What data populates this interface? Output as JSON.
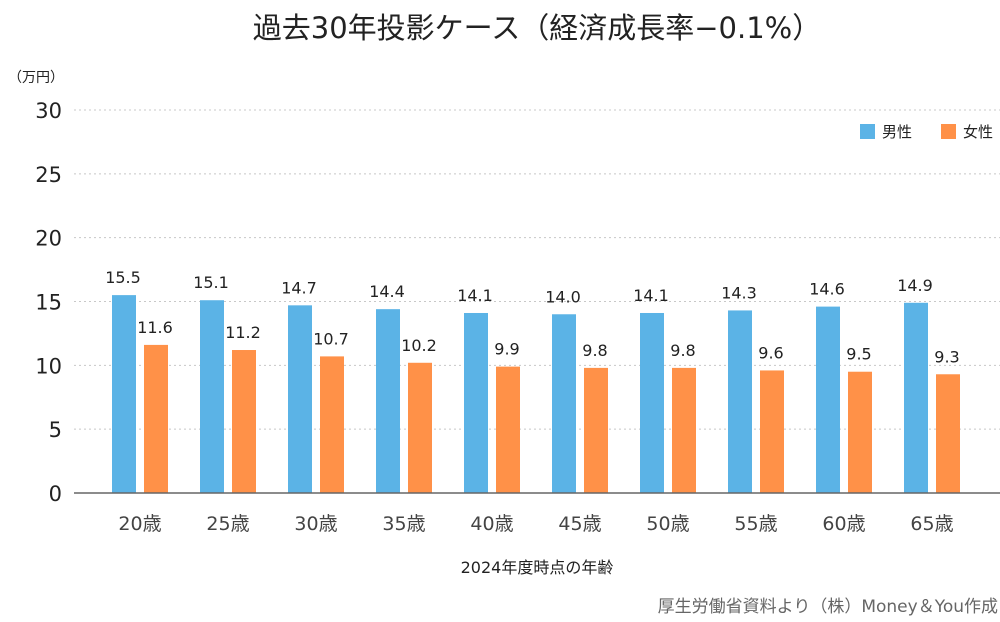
{
  "chart_data": {
    "type": "bar",
    "title": "過去30年投影ケース（経済成長率−0.1%）",
    "unit_label": "（万円）",
    "xlabel": "2024年度時点の年齢",
    "ylabel": "",
    "ylim": [
      0,
      30
    ],
    "yticks": [
      0,
      5,
      10,
      15,
      20,
      25,
      30
    ],
    "grid": true,
    "legend_position": "top-right",
    "categories": [
      "20歳",
      "25歳",
      "30歳",
      "35歳",
      "40歳",
      "45歳",
      "50歳",
      "55歳",
      "60歳",
      "65歳"
    ],
    "series": [
      {
        "name": "男性",
        "color": "#5BB3E6",
        "values": [
          15.5,
          15.1,
          14.7,
          14.4,
          14.1,
          14.0,
          14.1,
          14.3,
          14.6,
          14.9
        ],
        "labels": [
          "15.5",
          "15.1",
          "14.7",
          "14.4",
          "14.1",
          "14.0",
          "14.1",
          "14.3",
          "14.6",
          "14.9"
        ]
      },
      {
        "name": "女性",
        "color": "#FF9148",
        "values": [
          11.6,
          11.2,
          10.7,
          10.2,
          9.9,
          9.8,
          9.8,
          9.6,
          9.5,
          9.3
        ],
        "labels": [
          "11.6",
          "11.2",
          "10.7",
          "10.2",
          "9.9",
          "9.8",
          "9.8",
          "9.6",
          "9.5",
          "9.3"
        ]
      }
    ],
    "source": "厚生労働省資料より（株）Money＆You作成"
  }
}
